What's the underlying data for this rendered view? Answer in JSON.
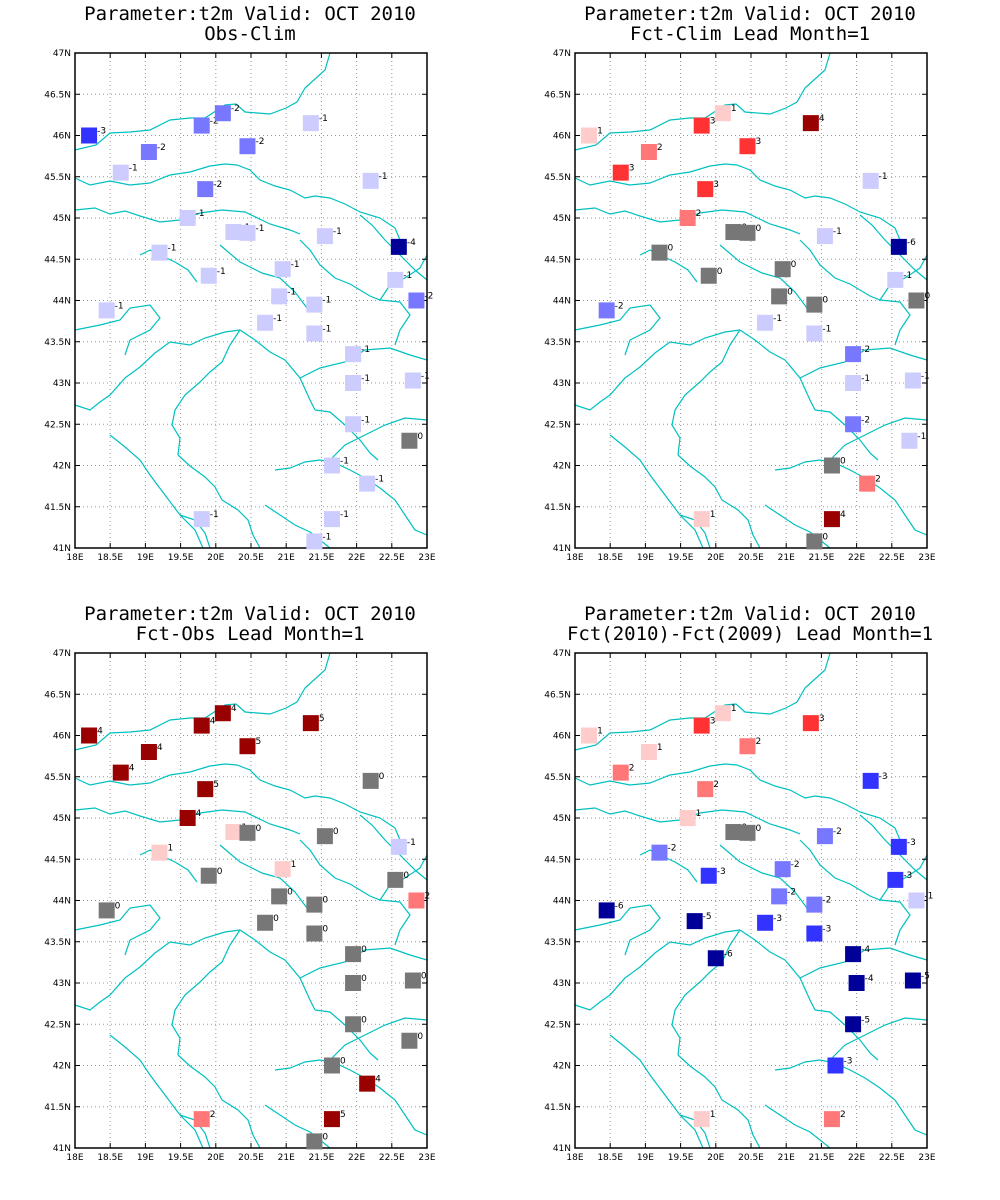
{
  "lat_labels": [
    "41N",
    "41.5N",
    "42N",
    "42.5N",
    "43N",
    "43.5N",
    "44N",
    "44.5N",
    "45N",
    "45.5N",
    "46N",
    "46.5N",
    "47N"
  ],
  "lon_labels": [
    "18E",
    "18.5E",
    "19E",
    "19.5E",
    "20E",
    "20.5E",
    "21E",
    "21.5E",
    "22E",
    "22.5E",
    "23E"
  ],
  "bounds": {
    "lon": [
      18,
      23
    ],
    "lat": [
      41,
      47
    ]
  },
  "colors": {
    "-6": "#000099",
    "-5": "#000099",
    "-4": "#000099",
    "-3": "#3333ff",
    "-2": "#7777ff",
    "-1": "#ccccff",
    "0": "#777777",
    "1": "#ffcccc",
    "2": "#ff7777",
    "3": "#ff3333",
    "4": "#990000",
    "5": "#990000",
    "6": "#990000",
    "coast": "#00c0c0"
  },
  "panels": [
    {
      "title1": "Parameter:t2m Valid: OCT 2010",
      "title2": "Obs-Clim",
      "points": [
        [
          18.2,
          46.0,
          -3
        ],
        [
          18.65,
          45.55,
          -1
        ],
        [
          19.05,
          45.8,
          -2
        ],
        [
          19.8,
          46.12,
          -2
        ],
        [
          20.1,
          46.27,
          -2
        ],
        [
          20.45,
          45.87,
          -2
        ],
        [
          21.35,
          46.15,
          -1
        ],
        [
          19.85,
          45.35,
          -2
        ],
        [
          19.6,
          45.0,
          -1
        ],
        [
          20.25,
          44.83,
          -1
        ],
        [
          20.45,
          44.82,
          -1
        ],
        [
          21.55,
          44.78,
          -1
        ],
        [
          22.6,
          44.65,
          -4
        ],
        [
          22.2,
          45.45,
          -1
        ],
        [
          19.2,
          44.58,
          -1
        ],
        [
          19.9,
          44.3,
          -1
        ],
        [
          20.95,
          44.38,
          -1
        ],
        [
          20.9,
          44.05,
          -1
        ],
        [
          21.4,
          43.95,
          -1
        ],
        [
          20.7,
          43.73,
          -1
        ],
        [
          21.4,
          43.6,
          -1
        ],
        [
          22.55,
          44.25,
          -1
        ],
        [
          22.85,
          44.0,
          -2
        ],
        [
          18.45,
          43.88,
          -1
        ],
        [
          21.95,
          43.35,
          -1
        ],
        [
          21.95,
          43.0,
          -1
        ],
        [
          22.8,
          43.03,
          -1
        ],
        [
          21.95,
          42.5,
          -1
        ],
        [
          22.75,
          42.3,
          0
        ],
        [
          21.65,
          42.0,
          -1
        ],
        [
          22.15,
          41.78,
          -1
        ],
        [
          19.8,
          41.35,
          -1
        ],
        [
          21.65,
          41.35,
          -1
        ],
        [
          21.4,
          41.08,
          -1
        ]
      ]
    },
    {
      "title1": "Parameter:t2m Valid: OCT 2010",
      "title2": "Fct-Clim Lead Month=1",
      "points": [
        [
          18.2,
          46.0,
          1
        ],
        [
          18.65,
          45.55,
          3
        ],
        [
          19.05,
          45.8,
          2
        ],
        [
          19.8,
          46.12,
          3
        ],
        [
          20.1,
          46.27,
          1
        ],
        [
          20.45,
          45.87,
          3
        ],
        [
          21.35,
          46.15,
          4
        ],
        [
          19.85,
          45.35,
          3
        ],
        [
          19.6,
          45.0,
          2
        ],
        [
          20.25,
          44.83,
          0
        ],
        [
          20.45,
          44.82,
          0
        ],
        [
          21.55,
          44.78,
          -1
        ],
        [
          22.6,
          44.65,
          -6
        ],
        [
          22.2,
          45.45,
          -1
        ],
        [
          19.2,
          44.58,
          0
        ],
        [
          19.9,
          44.3,
          0
        ],
        [
          20.95,
          44.38,
          0
        ],
        [
          20.9,
          44.05,
          0
        ],
        [
          21.4,
          43.95,
          0
        ],
        [
          20.7,
          43.73,
          -1
        ],
        [
          21.4,
          43.6,
          -1
        ],
        [
          22.55,
          44.25,
          -1
        ],
        [
          22.85,
          44.0,
          0
        ],
        [
          18.45,
          43.88,
          -2
        ],
        [
          21.95,
          43.35,
          -2
        ],
        [
          21.95,
          43.0,
          -1
        ],
        [
          22.8,
          43.03,
          -1
        ],
        [
          21.95,
          42.5,
          -2
        ],
        [
          22.75,
          42.3,
          -1
        ],
        [
          21.65,
          42.0,
          0
        ],
        [
          22.15,
          41.78,
          2
        ],
        [
          19.8,
          41.35,
          1
        ],
        [
          21.65,
          41.35,
          4
        ],
        [
          21.4,
          41.08,
          0
        ]
      ]
    },
    {
      "title1": "Parameter:t2m Valid: OCT 2010",
      "title2": "Fct-Obs Lead Month=1",
      "points": [
        [
          18.2,
          46.0,
          4
        ],
        [
          18.65,
          45.55,
          4
        ],
        [
          19.05,
          45.8,
          4
        ],
        [
          19.8,
          46.12,
          4
        ],
        [
          20.1,
          46.27,
          4
        ],
        [
          20.45,
          45.87,
          5
        ],
        [
          21.35,
          46.15,
          5
        ],
        [
          19.85,
          45.35,
          5
        ],
        [
          19.6,
          45.0,
          4
        ],
        [
          20.25,
          44.83,
          1
        ],
        [
          20.45,
          44.82,
          0
        ],
        [
          21.55,
          44.78,
          0
        ],
        [
          22.6,
          44.65,
          -1
        ],
        [
          22.2,
          45.45,
          0
        ],
        [
          19.2,
          44.58,
          1
        ],
        [
          19.9,
          44.3,
          0
        ],
        [
          20.95,
          44.38,
          1
        ],
        [
          20.9,
          44.05,
          0
        ],
        [
          21.4,
          43.95,
          0
        ],
        [
          20.7,
          43.73,
          0
        ],
        [
          21.4,
          43.6,
          0
        ],
        [
          22.55,
          44.25,
          0
        ],
        [
          22.85,
          44.0,
          2
        ],
        [
          18.45,
          43.88,
          0
        ],
        [
          21.95,
          43.35,
          0
        ],
        [
          21.95,
          43.0,
          0
        ],
        [
          22.8,
          43.03,
          0
        ],
        [
          21.95,
          42.5,
          0
        ],
        [
          22.75,
          42.3,
          0
        ],
        [
          21.65,
          42.0,
          0
        ],
        [
          22.15,
          41.78,
          4
        ],
        [
          19.8,
          41.35,
          2
        ],
        [
          21.65,
          41.35,
          5
        ],
        [
          21.4,
          41.08,
          0
        ]
      ]
    },
    {
      "title1": "Parameter:t2m Valid: OCT 2010",
      "title2": "Fct(2010)-Fct(2009) Lead Month=1",
      "points": [
        [
          18.2,
          46.0,
          1
        ],
        [
          18.65,
          45.55,
          2
        ],
        [
          19.05,
          45.8,
          1
        ],
        [
          19.8,
          46.12,
          3
        ],
        [
          20.1,
          46.27,
          1
        ],
        [
          20.45,
          45.87,
          2
        ],
        [
          21.35,
          46.15,
          3
        ],
        [
          19.85,
          45.35,
          2
        ],
        [
          19.6,
          45.0,
          1
        ],
        [
          20.25,
          44.83,
          0
        ],
        [
          20.45,
          44.82,
          0
        ],
        [
          21.55,
          44.78,
          -2
        ],
        [
          22.6,
          44.65,
          -3
        ],
        [
          22.2,
          45.45,
          -3
        ],
        [
          19.2,
          44.58,
          -2
        ],
        [
          19.9,
          44.3,
          -3
        ],
        [
          20.95,
          44.38,
          -2
        ],
        [
          20.9,
          44.05,
          -2
        ],
        [
          21.4,
          43.95,
          -2
        ],
        [
          20.7,
          43.73,
          -3
        ],
        [
          21.4,
          43.6,
          -3
        ],
        [
          22.55,
          44.25,
          -3
        ],
        [
          22.85,
          44.0,
          -1
        ],
        [
          18.45,
          43.88,
          -6
        ],
        [
          19.7,
          43.75,
          -5
        ],
        [
          20.0,
          43.3,
          -6
        ],
        [
          21.95,
          43.35,
          -4
        ],
        [
          22.0,
          43.0,
          -4
        ],
        [
          22.8,
          43.03,
          -5
        ],
        [
          21.95,
          42.5,
          -5
        ],
        [
          21.7,
          42.0,
          -3
        ],
        [
          19.8,
          41.35,
          1
        ],
        [
          21.65,
          41.35,
          2
        ]
      ]
    }
  ]
}
